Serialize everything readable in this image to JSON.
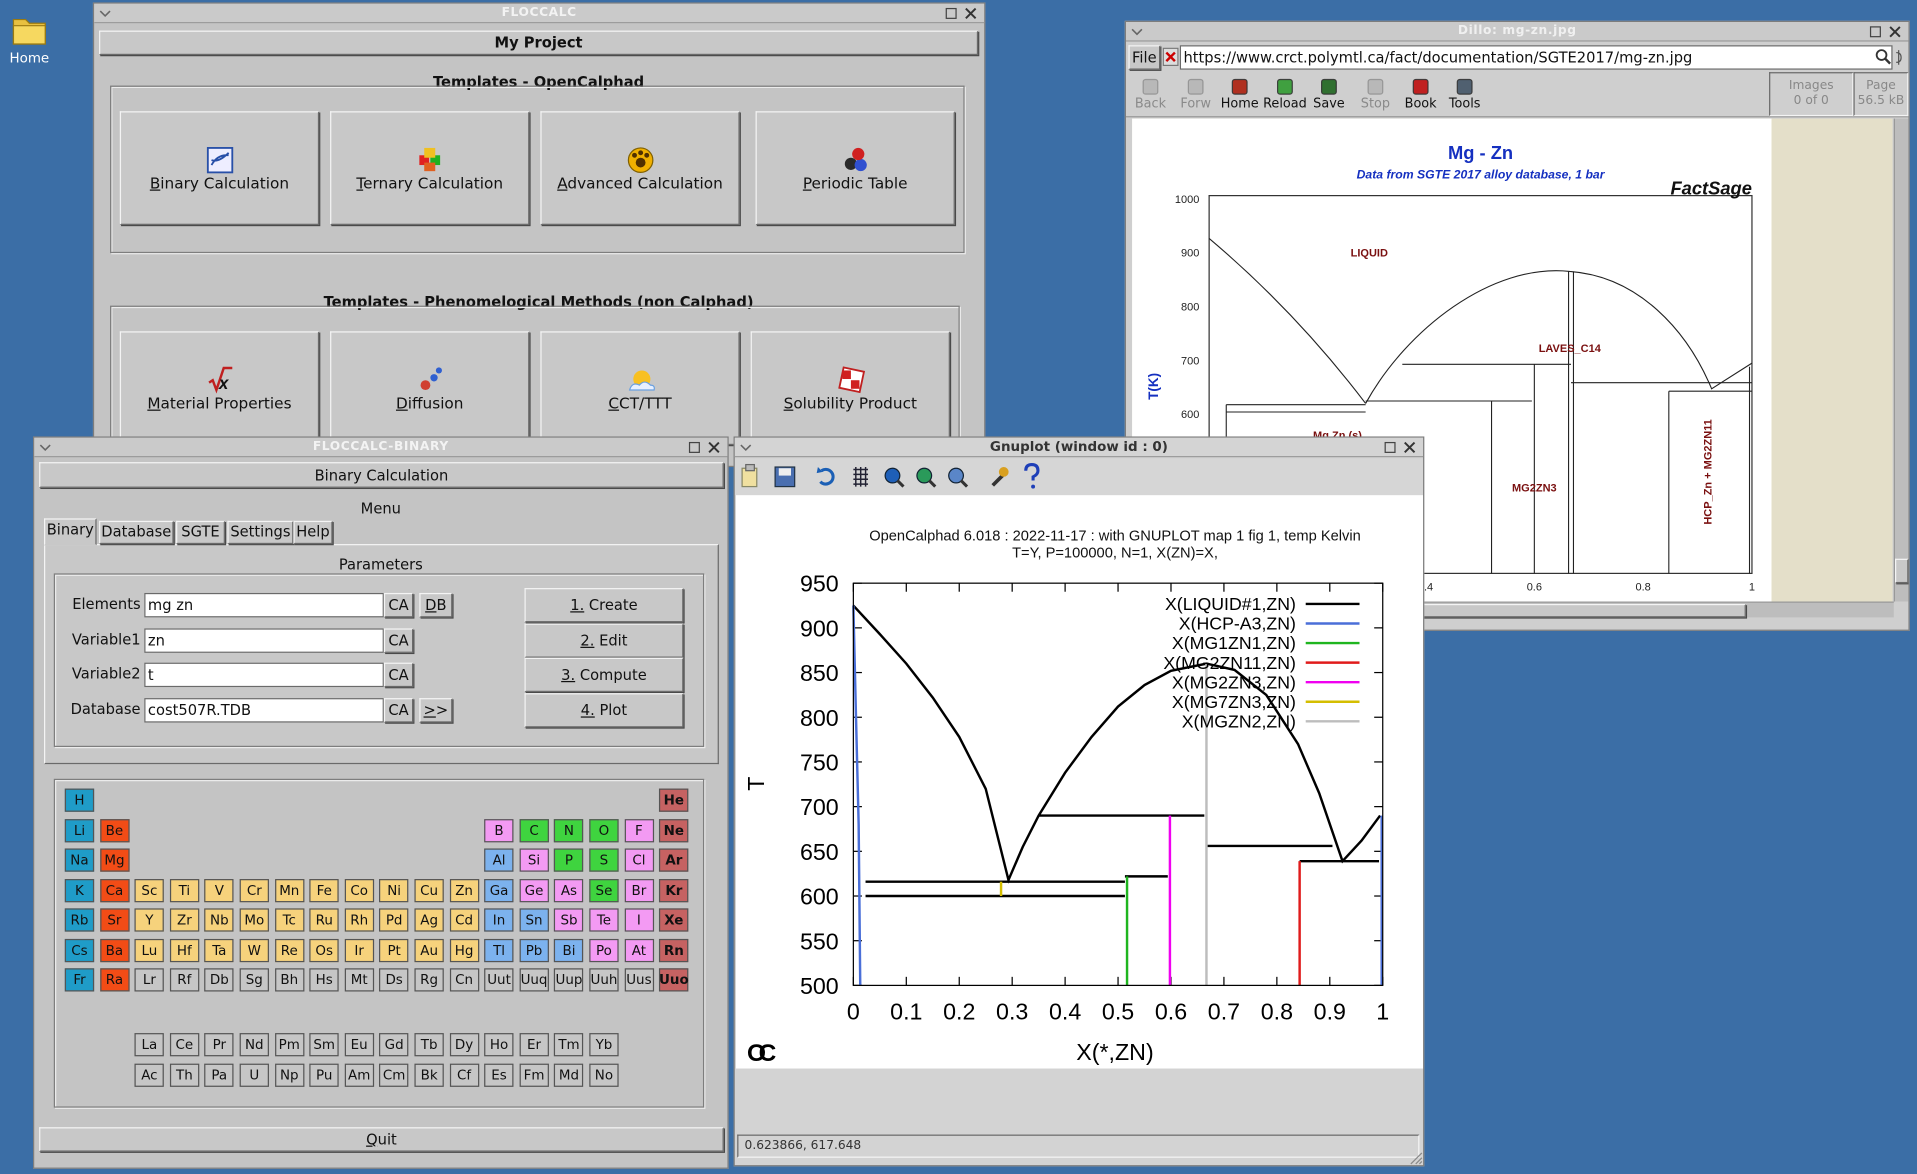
{
  "desktop": {
    "home": "Home"
  },
  "floccalc": {
    "title": "FLOCCALC",
    "project": "My Project",
    "groups": [
      {
        "heading": "Templates - OpenCalphad",
        "buttons": [
          "Binary Calculation",
          "Ternary Calculation",
          "Advanced Calculation",
          "Periodic Table"
        ]
      },
      {
        "heading": "Templates - Phenomelogical Methods (non Calphad)",
        "buttons": [
          "Material Properties",
          "Diffusion",
          "CCT/TTT",
          "Solubility Product"
        ]
      }
    ]
  },
  "dillo": {
    "title": "Dillo: mg-zn.jpg",
    "menu": "File",
    "url": "https://www.crct.polymtl.ca/fact/documentation/SGTE2017/mg-zn.jpg",
    "toolbar": [
      "Back",
      "Forw",
      "Home",
      "Reload",
      "Save",
      "Stop",
      "Book",
      "Tools"
    ],
    "images": {
      "label": "Images",
      "value": "0 of 0"
    },
    "page": {
      "label": "Page",
      "value": "56.5 kB"
    },
    "image": {
      "title": "Mg - Zn",
      "subtitle": "Data from SGTE 2017 alloy database, 1 bar",
      "brand": "FactSage",
      "y_label": "T(K)",
      "yticks": [
        1000,
        900,
        800,
        700,
        600
      ],
      "xticks": [
        0.4,
        0.6,
        0.8,
        1
      ],
      "phases": [
        "LIQUID",
        "LAVES_C14",
        "Mg Zn (s)",
        "MG2ZN3",
        "HCP_Zn + MG2ZN11"
      ]
    }
  },
  "binary": {
    "title": "FLOCCALC-BINARY",
    "header": "Binary Calculation",
    "menu": "Menu",
    "tabs": [
      "Binary",
      "Database",
      "SGTE",
      "Settings",
      "Help"
    ],
    "parameters": "Parameters",
    "fields": [
      {
        "label": "Elements",
        "value": "mg zn",
        "buttons": [
          "CA",
          "DB"
        ]
      },
      {
        "label": "Variable1",
        "value": "zn",
        "buttons": [
          "CA"
        ]
      },
      {
        "label": "Variable2",
        "value": "t",
        "buttons": [
          "CA"
        ]
      },
      {
        "label": "Database",
        "value": "cost507R.TDB",
        "buttons": [
          "CA",
          ">>"
        ]
      }
    ],
    "actions": [
      "1. Create",
      "2. Edit",
      "3. Compute",
      "4. Plot"
    ],
    "periodic_table": {
      "rows": [
        [
          "H",
          null,
          null,
          null,
          null,
          null,
          null,
          null,
          null,
          null,
          null,
          null,
          null,
          null,
          null,
          null,
          null,
          "He"
        ],
        [
          "Li",
          "Be",
          null,
          null,
          null,
          null,
          null,
          null,
          null,
          null,
          null,
          null,
          "B",
          "C",
          "N",
          "O",
          "F",
          "Ne"
        ],
        [
          "Na",
          "Mg",
          null,
          null,
          null,
          null,
          null,
          null,
          null,
          null,
          null,
          null,
          "Al",
          "Si",
          "P",
          "S",
          "Cl",
          "Ar"
        ],
        [
          "K",
          "Ca",
          "Sc",
          "Ti",
          "V",
          "Cr",
          "Mn",
          "Fe",
          "Co",
          "Ni",
          "Cu",
          "Zn",
          "Ga",
          "Ge",
          "As",
          "Se",
          "Br",
          "Kr"
        ],
        [
          "Rb",
          "Sr",
          "Y",
          "Zr",
          "Nb",
          "Mo",
          "Tc",
          "Ru",
          "Rh",
          "Pd",
          "Ag",
          "Cd",
          "In",
          "Sn",
          "Sb",
          "Te",
          "I",
          "Xe"
        ],
        [
          "Cs",
          "Ba",
          "Lu",
          "Hf",
          "Ta",
          "W",
          "Re",
          "Os",
          "Ir",
          "Pt",
          "Au",
          "Hg",
          "Tl",
          "Pb",
          "Bi",
          "Po",
          "At",
          "Rn"
        ],
        [
          "Fr",
          "Ra",
          "Lr",
          "Rf",
          "Db",
          "Sg",
          "Bh",
          "Hs",
          "Mt",
          "Ds",
          "Rg",
          "Cn",
          "Uut",
          "Uuq",
          "Uup",
          "Uuh",
          "Uus",
          "Uuo"
        ]
      ],
      "lanthanides": [
        "La",
        "Ce",
        "Pr",
        "Nd",
        "Pm",
        "Sm",
        "Eu",
        "Gd",
        "Tb",
        "Dy",
        "Ho",
        "Er",
        "Tm",
        "Yb"
      ],
      "actinides": [
        "Ac",
        "Th",
        "Pa",
        "U",
        "Np",
        "Pu",
        "Am",
        "Cm",
        "Bk",
        "Cf",
        "Es",
        "Fm",
        "Md",
        "No"
      ]
    },
    "quit": "Quit"
  },
  "gnuplot": {
    "title": "Gnuplot (window id : 0)",
    "status": "0.623866,  617.648",
    "logo": "OC"
  },
  "chart_data": {
    "type": "line",
    "title": "OpenCalphad    6.018 :  2022-11-17 : with GNUPLOT map 1 fig 1, temp Kelvin",
    "subtitle": "T=Y,  P=100000, N=1, X(ZN)=X,",
    "x_label": "X(*,ZN)",
    "y_label": "T",
    "xlim": [
      0,
      1
    ],
    "ylim": [
      500,
      950
    ],
    "xticks": [
      0,
      0.1,
      0.2,
      0.3,
      0.4,
      0.5,
      0.6,
      0.7,
      0.8,
      0.9,
      1
    ],
    "yticks": [
      500,
      550,
      600,
      650,
      700,
      750,
      800,
      850,
      900,
      950
    ],
    "grid": false,
    "legend": "top-right",
    "series": [
      {
        "name": "X(LIQUID#1,ZN)",
        "color": "#000000",
        "x": [
          0,
          0.05,
          0.1,
          0.15,
          0.2,
          0.25,
          0.293,
          0.32,
          0.35,
          0.4,
          0.45,
          0.5,
          0.55,
          0.6,
          0.667,
          0.72,
          0.78,
          0.84,
          0.88,
          0.924,
          0.96,
          0.995,
          null,
          0.023,
          0.513,
          null,
          0.023,
          0.513,
          null,
          0.351,
          0.663,
          null,
          0.513,
          0.594,
          null,
          0.667,
          0.905,
          null,
          0.843,
          0.993
        ],
        "y": [
          925,
          893,
          860,
          822,
          778,
          720,
          618,
          655,
          690,
          738,
          778,
          812,
          836,
          852,
          860,
          853,
          825,
          770,
          715,
          639,
          662,
          690,
          null,
          616,
          616,
          null,
          600,
          600,
          null,
          690,
          690,
          null,
          622,
          622,
          null,
          656,
          656,
          null,
          639,
          639
        ]
      },
      {
        "name": "X(HCP-A3,ZN)",
        "color": "#4a6fd8",
        "x": [
          0,
          0.005,
          0.01,
          0.013,
          null,
          0.998,
          0.998
        ],
        "y": [
          925,
          800,
          680,
          500,
          null,
          690,
          500
        ]
      },
      {
        "name": "X(MG1ZN1,ZN)",
        "color": "#1fb51f",
        "x": [
          0.517,
          0.517
        ],
        "y": [
          622,
          500
        ]
      },
      {
        "name": "X(MG2ZN11,ZN)",
        "color": "#e01b1b",
        "x": [
          0.843,
          0.843
        ],
        "y": [
          639,
          500
        ]
      },
      {
        "name": "X(MG2ZN3,ZN)",
        "color": "#f000f0",
        "x": [
          0.598,
          0.598
        ],
        "y": [
          690,
          500
        ]
      },
      {
        "name": "X(MG7ZN3,ZN)",
        "color": "#d4be00",
        "x": [
          0.279,
          0.279
        ],
        "y": [
          616,
          600
        ]
      },
      {
        "name": "X(MGZN2,ZN)",
        "color": "#bdbdbd",
        "x": [
          0.667,
          0.667
        ],
        "y": [
          860,
          500
        ]
      }
    ]
  }
}
